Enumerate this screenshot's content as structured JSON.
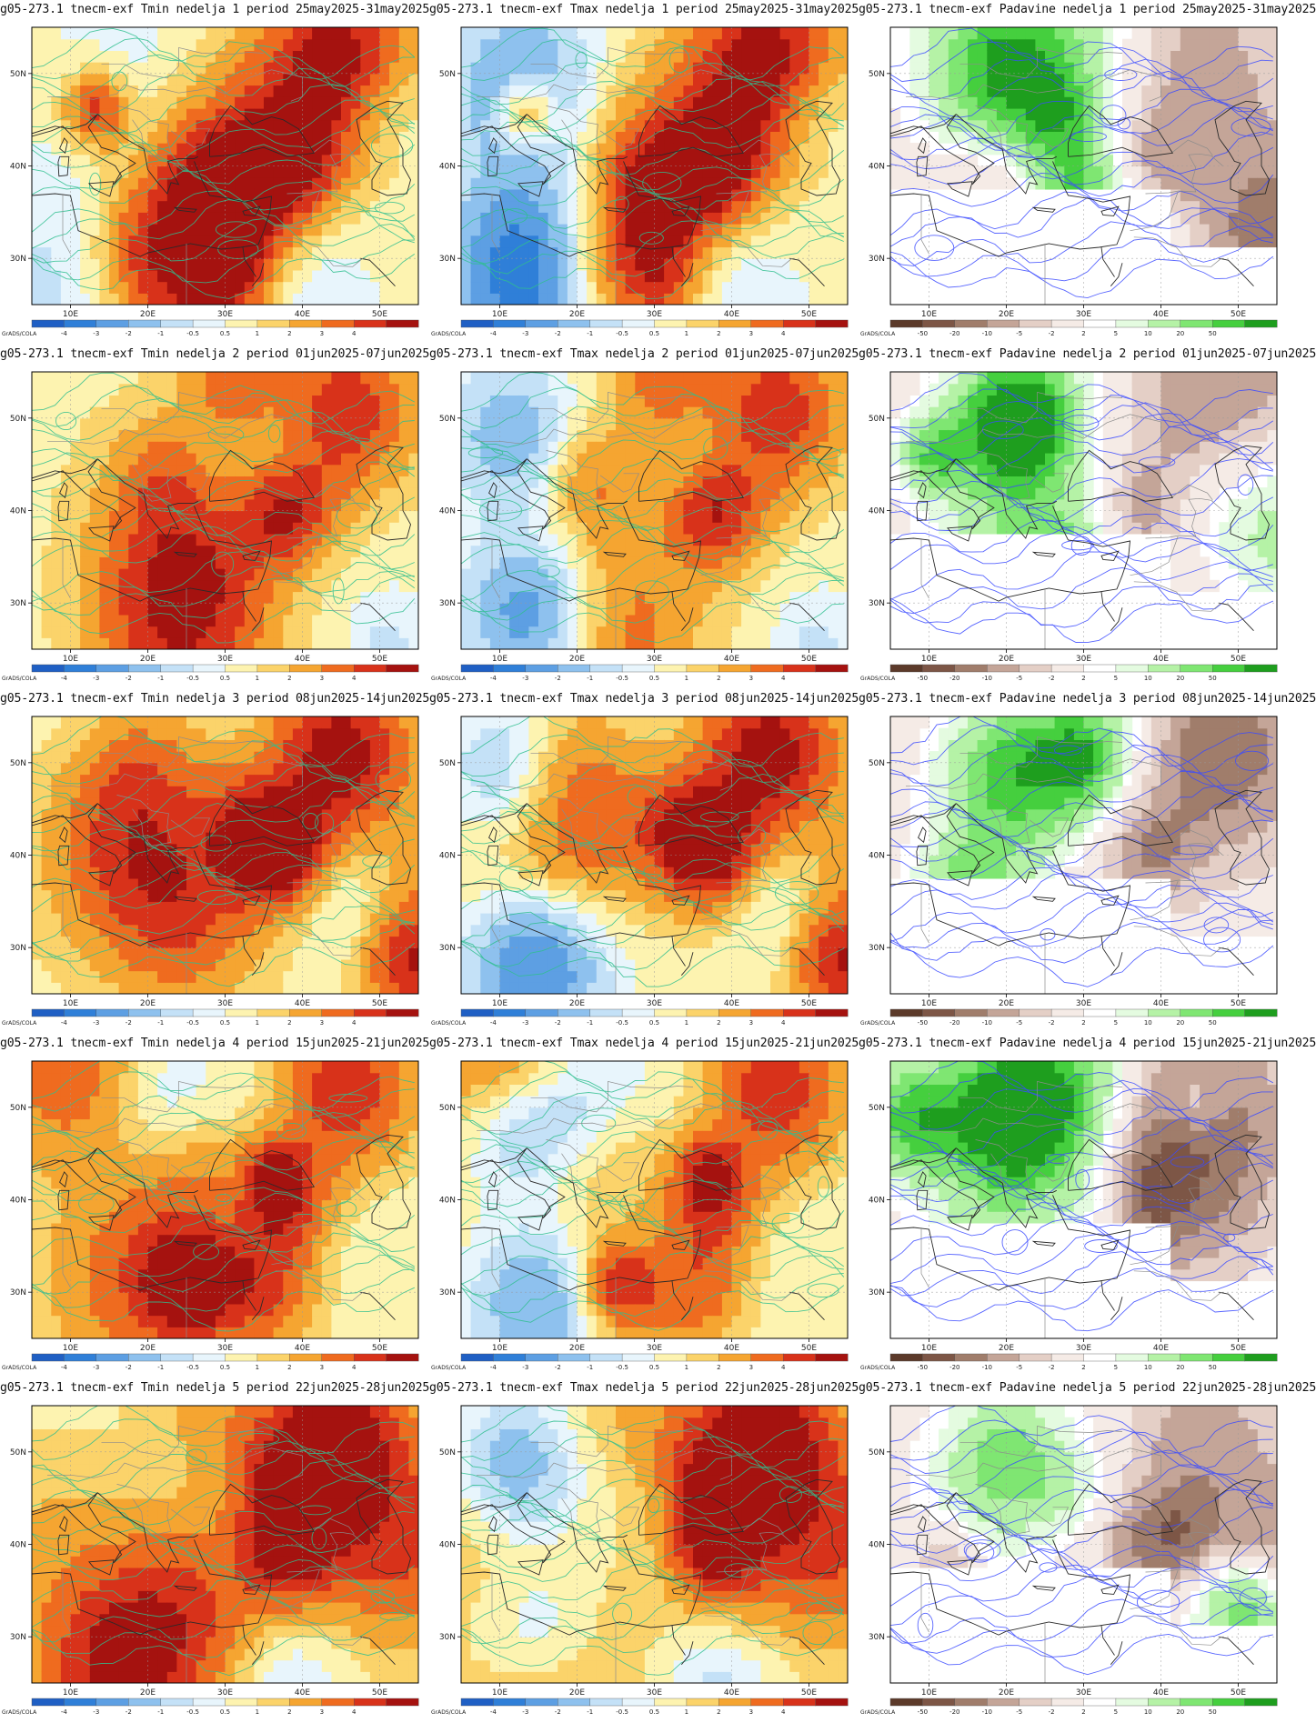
{
  "axes": {
    "lon_labels": [
      "10E",
      "20E",
      "30E",
      "40E",
      "50E"
    ],
    "lat_labels": [
      "50N",
      "40N",
      "30N"
    ],
    "lon_range": [
      5,
      55
    ],
    "lat_range": [
      25,
      55
    ]
  },
  "credit": "GrADS/COLA",
  "colorbars": {
    "temperature": {
      "labels": [
        "-4",
        "-3",
        "-2",
        "-1",
        "-0.5",
        "0.5",
        "1",
        "2",
        "3",
        "4"
      ],
      "colors": [
        "#1f5fc4",
        "#2f7fd8",
        "#5d9fe3",
        "#8ec1ee",
        "#c4e1f7",
        "#e8f5fc",
        "#fdf3b0",
        "#fbd36a",
        "#f5a531",
        "#ef6b1f",
        "#d8321a",
        "#a5120f"
      ]
    },
    "precipitation": {
      "labels": [
        "-50",
        "-20",
        "-10",
        "-5",
        "-2",
        "2",
        "5",
        "10",
        "20",
        "50"
      ],
      "colors": [
        "#5c3a2a",
        "#7d5646",
        "#a07d6b",
        "#c4a598",
        "#e4cfc6",
        "#f5ebe6",
        "#ffffff",
        "#e4fbe0",
        "#b5f2a6",
        "#7fe672",
        "#45cf3e",
        "#1e9e1e"
      ]
    }
  },
  "panels": [
    {
      "title": "g05-273.1 tnecm-exf Tmin nedelja 1 period 25may2025-31may2025",
      "variable": "Tmin",
      "week": 1
    },
    {
      "title": "g05-273.1 tnecm-exf Tmax nedelja 1 period 25may2025-31may2025",
      "variable": "Tmax",
      "week": 1
    },
    {
      "title": "g05-273.1 tnecm-exf Padavine nedelja 1 period 25may2025-31may2025",
      "variable": "Padavine",
      "week": 1
    },
    {
      "title": "g05-273.1 tnecm-exf Tmin nedelja 2 period 01jun2025-07jun2025",
      "variable": "Tmin",
      "week": 2
    },
    {
      "title": "g05-273.1 tnecm-exf Tmax nedelja 2 period 01jun2025-07jun2025",
      "variable": "Tmax",
      "week": 2
    },
    {
      "title": "g05-273.1 tnecm-exf Padavine nedelja 2 period 01jun2025-07jun2025",
      "variable": "Padavine",
      "week": 2
    },
    {
      "title": "g05-273.1 tnecm-exf Tmin nedelja 3 period 08jun2025-14jun2025",
      "variable": "Tmin",
      "week": 3
    },
    {
      "title": "g05-273.1 tnecm-exf Tmax nedelja 3 period 08jun2025-14jun2025",
      "variable": "Tmax",
      "week": 3
    },
    {
      "title": "g05-273.1 tnecm-exf Padavine nedelja 3 period 08jun2025-14jun2025",
      "variable": "Padavine",
      "week": 3
    },
    {
      "title": "g05-273.1 tnecm-exf Tmin nedelja 4 period 15jun2025-21jun2025",
      "variable": "Tmin",
      "week": 4
    },
    {
      "title": "g05-273.1 tnecm-exf Tmax nedelja 4 period 15jun2025-21jun2025",
      "variable": "Tmax",
      "week": 4
    },
    {
      "title": "g05-273.1 tnecm-exf Padavine nedelja 4 period 15jun2025-21jun2025",
      "variable": "Padavine",
      "week": 4
    },
    {
      "title": "g05-273.1 tnecm-exf Tmin nedelja 5 period 22jun2025-28jun2025",
      "variable": "Tmin",
      "week": 5
    },
    {
      "title": "g05-273.1 tnecm-exf Tmax nedelja 5 period 22jun2025-28jun2025",
      "variable": "Tmax",
      "week": 5
    },
    {
      "title": "g05-273.1 tnecm-exf Padavine nedelja 5 period 22jun2025-28jun2025",
      "variable": "Padavine",
      "week": 5
    }
  ]
}
